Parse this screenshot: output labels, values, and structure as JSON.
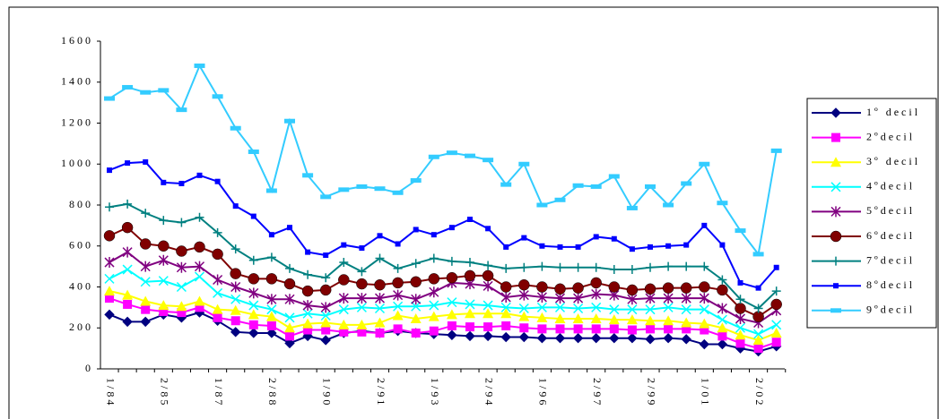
{
  "chart_data": {
    "type": "line",
    "categories": [
      "1/84",
      null,
      null,
      "2/85",
      null,
      null,
      "1/87",
      null,
      null,
      "2/88",
      null,
      null,
      "1/90",
      null,
      null,
      "2/91",
      null,
      null,
      "1/93",
      null,
      null,
      "2/94",
      null,
      null,
      "1/96",
      null,
      null,
      "2/97",
      null,
      null,
      "2/99",
      null,
      null,
      "1/01",
      null,
      null,
      "2/02",
      null
    ],
    "ylim": [
      0,
      1600
    ],
    "yticks": [
      0,
      200,
      400,
      600,
      800,
      1000,
      1200,
      1400,
      1600
    ],
    "grid": false,
    "legend": "right",
    "series": [
      {
        "name": "1º decil",
        "color": "#000080",
        "marker": "diamond",
        "values": [
          265,
          230,
          230,
          265,
          250,
          275,
          235,
          180,
          175,
          175,
          125,
          160,
          140,
          175,
          185,
          175,
          185,
          175,
          170,
          165,
          160,
          160,
          155,
          155,
          150,
          150,
          150,
          150,
          150,
          150,
          145,
          150,
          145,
          120,
          120,
          100,
          85,
          110
        ]
      },
      {
        "name": "2ºdecil",
        "color": "#ff00ff",
        "marker": "square",
        "values": [
          345,
          315,
          290,
          280,
          275,
          300,
          250,
          235,
          215,
          210,
          160,
          190,
          190,
          180,
          180,
          175,
          195,
          175,
          185,
          210,
          205,
          205,
          210,
          200,
          195,
          195,
          195,
          195,
          195,
          190,
          195,
          195,
          195,
          190,
          160,
          125,
          100,
          130
        ]
      },
      {
        "name": "3º decil",
        "color": "#ffff00",
        "marker": "triangle",
        "values": [
          380,
          360,
          330,
          310,
          305,
          330,
          290,
          285,
          265,
          255,
          200,
          220,
          225,
          215,
          215,
          225,
          260,
          245,
          255,
          265,
          270,
          270,
          270,
          255,
          250,
          245,
          245,
          245,
          240,
          240,
          235,
          235,
          225,
          220,
          200,
          165,
          140,
          175
        ]
      },
      {
        "name": "4ºdecil",
        "color": "#00ffff",
        "marker": "x",
        "values": [
          440,
          485,
          425,
          430,
          400,
          450,
          370,
          340,
          310,
          290,
          250,
          270,
          260,
          290,
          300,
          295,
          305,
          305,
          310,
          325,
          315,
          310,
          300,
          295,
          300,
          300,
          295,
          300,
          290,
          290,
          290,
          300,
          290,
          290,
          240,
          200,
          170,
          215
        ]
      },
      {
        "name": "5ºdecil",
        "color": "#800080",
        "marker": "star",
        "values": [
          520,
          570,
          500,
          530,
          495,
          500,
          435,
          400,
          370,
          340,
          340,
          310,
          300,
          345,
          345,
          345,
          360,
          340,
          375,
          420,
          415,
          405,
          350,
          360,
          350,
          345,
          345,
          365,
          360,
          340,
          345,
          345,
          345,
          345,
          295,
          245,
          225,
          285
        ]
      },
      {
        "name": "6ºdecil",
        "color": "#800000",
        "marker": "circle",
        "values": [
          650,
          690,
          610,
          600,
          575,
          595,
          560,
          465,
          440,
          440,
          415,
          380,
          385,
          435,
          415,
          410,
          420,
          425,
          440,
          445,
          455,
          455,
          400,
          410,
          400,
          390,
          395,
          420,
          400,
          385,
          390,
          395,
          395,
          400,
          385,
          295,
          255,
          315
        ]
      },
      {
        "name": "7ºdecil",
        "color": "#008080",
        "marker": "plus",
        "values": [
          790,
          805,
          760,
          725,
          715,
          740,
          665,
          585,
          530,
          545,
          490,
          460,
          445,
          520,
          475,
          540,
          490,
          515,
          540,
          525,
          520,
          505,
          490,
          495,
          500,
          495,
          495,
          495,
          485,
          485,
          495,
          500,
          500,
          500,
          435,
          340,
          295,
          380
        ]
      },
      {
        "name": "8ºdecil",
        "color": "#0000ff",
        "marker": "smallsquare",
        "values": [
          970,
          1005,
          1010,
          910,
          905,
          945,
          915,
          795,
          745,
          655,
          690,
          570,
          555,
          605,
          590,
          650,
          610,
          680,
          655,
          690,
          730,
          685,
          595,
          640,
          600,
          595,
          595,
          645,
          635,
          585,
          595,
          600,
          605,
          700,
          605,
          420,
          395,
          495
        ]
      },
      {
        "name": "9ºdecil",
        "color": "#33ccff",
        "marker": "bar",
        "values": [
          1320,
          1375,
          1350,
          1360,
          1265,
          1480,
          1330,
          1175,
          1060,
          870,
          1210,
          945,
          840,
          875,
          890,
          880,
          860,
          920,
          1035,
          1055,
          1040,
          1020,
          900,
          1000,
          800,
          825,
          895,
          890,
          940,
          785,
          890,
          800,
          905,
          1000,
          810,
          675,
          560,
          1065
        ]
      }
    ]
  }
}
